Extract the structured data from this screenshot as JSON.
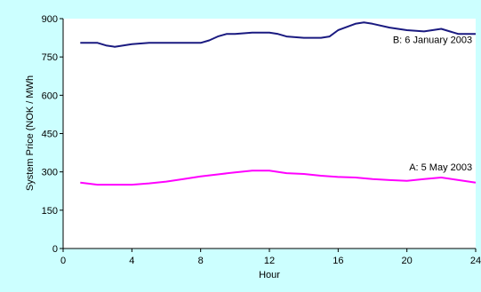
{
  "chart_data": {
    "type": "line",
    "title": "",
    "xlabel": "Hour",
    "ylabel": "System Price (NOK / MWh",
    "xlim": [
      0,
      24
    ],
    "ylim": [
      0,
      900
    ],
    "xticks": [
      0,
      4,
      8,
      12,
      16,
      20,
      24
    ],
    "yticks": [
      0,
      150,
      300,
      450,
      600,
      750,
      900
    ],
    "grid": false,
    "legend": "inline-labels",
    "series": [
      {
        "name": "B: 6 January 2003",
        "color": "#1a1a80",
        "x": [
          1,
          2,
          2.5,
          3,
          4,
          5,
          6,
          7,
          8,
          8.5,
          9,
          9.5,
          10,
          11,
          12,
          12.5,
          13,
          14,
          15,
          15.5,
          16,
          17,
          17.5,
          18,
          19,
          20,
          21,
          22,
          23,
          24
        ],
        "y": [
          805,
          805,
          795,
          790,
          800,
          805,
          805,
          805,
          805,
          815,
          830,
          840,
          840,
          845,
          845,
          840,
          830,
          825,
          825,
          830,
          855,
          880,
          885,
          880,
          865,
          855,
          850,
          860,
          840,
          840
        ]
      },
      {
        "name": "A: 5 May 2003",
        "color": "#ff00ff",
        "x": [
          1,
          2,
          3,
          4,
          5,
          6,
          7,
          8,
          9,
          10,
          11,
          12,
          13,
          14,
          15,
          16,
          17,
          18,
          19,
          20,
          21,
          22,
          23,
          24
        ],
        "y": [
          258,
          250,
          250,
          250,
          255,
          262,
          272,
          282,
          290,
          298,
          305,
          305,
          295,
          292,
          285,
          280,
          278,
          272,
          268,
          265,
          272,
          278,
          268,
          258
        ]
      }
    ],
    "annotations": [
      {
        "text": "B: 6 January 2003",
        "x": 23.8,
        "y": 805
      },
      {
        "text": "A: 5 May 2003",
        "x": 23.8,
        "y": 305
      }
    ]
  }
}
